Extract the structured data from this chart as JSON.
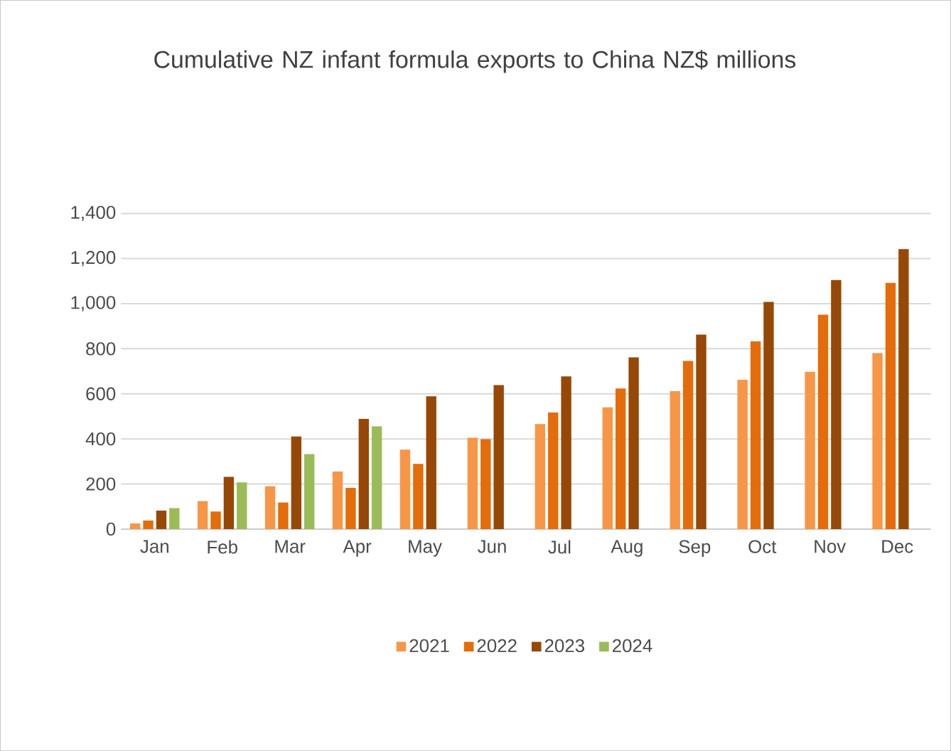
{
  "chart_data": {
    "type": "bar",
    "title": "Cumulative NZ infant formula exports to China  NZ$ millions",
    "categories": [
      "Jan",
      "Feb",
      "Mar",
      "Apr",
      "May",
      "Jun",
      "Jul",
      "Aug",
      "Sep",
      "Oct",
      "Nov",
      "Dec"
    ],
    "series": [
      {
        "name": "2021",
        "color": "#f79646",
        "values": [
          25,
          124,
          190,
          255,
          352,
          405,
          466,
          540,
          612,
          662,
          698,
          781
        ]
      },
      {
        "name": "2022",
        "color": "#e46c0a",
        "values": [
          38,
          78,
          118,
          183,
          289,
          399,
          517,
          624,
          746,
          833,
          951,
          1092
        ]
      },
      {
        "name": "2023",
        "color": "#974806",
        "values": [
          82,
          232,
          411,
          489,
          589,
          639,
          677,
          762,
          863,
          1008,
          1105,
          1242
        ]
      },
      {
        "name": "2024",
        "color": "#9bbb59",
        "values": [
          93,
          207,
          333,
          456,
          null,
          null,
          null,
          null,
          null,
          null,
          null,
          null
        ]
      }
    ],
    "ylim": [
      0,
      1400
    ],
    "yticks": [
      {
        "value": 0,
        "label": "0"
      },
      {
        "value": 200,
        "label": "200"
      },
      {
        "value": 400,
        "label": "400"
      },
      {
        "value": 600,
        "label": "600"
      },
      {
        "value": 800,
        "label": "800"
      },
      {
        "value": 1000,
        "label": "1,000"
      },
      {
        "value": 1200,
        "label": "1,200"
      },
      {
        "value": 1400,
        "label": "1,400"
      }
    ],
    "grid": "y",
    "legend": "bottom"
  }
}
